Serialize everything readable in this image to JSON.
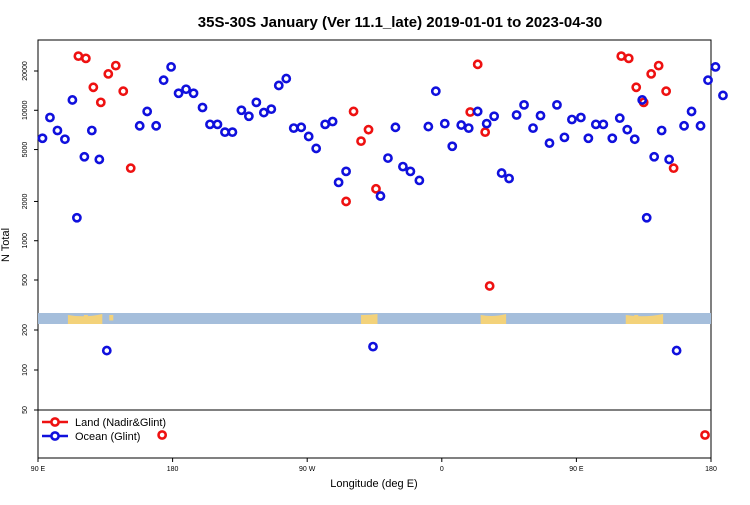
{
  "chart_data": {
    "type": "scatter",
    "title": "35S-30S January (Ver 11.1_late)   2019-01-01 to 2023-04-30",
    "xlabel": "Longitude (deg E)",
    "ylabel": "N Total",
    "x_ticks": [
      {
        "value": 90,
        "label": "90 E"
      },
      {
        "value": 180,
        "label": "180"
      },
      {
        "value": 270,
        "label": "90 W"
      },
      {
        "value": 360,
        "label": "0"
      },
      {
        "value": 450,
        "label": "90 E"
      },
      {
        "value": 540,
        "label": "180"
      }
    ],
    "xlim": [
      90,
      540
    ],
    "y_scale": "log",
    "upper_y_ticks": [
      {
        "value": 500,
        "label": "500"
      },
      {
        "value": 1000,
        "label": "1000"
      },
      {
        "value": 2000,
        "label": "2000"
      },
      {
        "value": 5000,
        "label": "5000"
      },
      {
        "value": 10000,
        "label": "10000"
      },
      {
        "value": 20000,
        "label": "20000"
      }
    ],
    "lower_y_ticks": [
      {
        "value": 50,
        "label": "50"
      },
      {
        "value": 100,
        "label": "100"
      },
      {
        "value": 200,
        "label": "200"
      }
    ],
    "land_strip_color": "#a5bedb",
    "land_color": "#f3d27a",
    "series": [
      {
        "name": "Land (Nadir&Glint)",
        "color": "#ee1111",
        "points": [
          [
            117,
            26000
          ],
          [
            122,
            25000
          ],
          [
            127,
            15000
          ],
          [
            132,
            11500
          ],
          [
            137,
            19000
          ],
          [
            142,
            22000
          ],
          [
            147,
            14000
          ],
          [
            152,
            3600
          ],
          [
            296,
            2000
          ],
          [
            301,
            9800
          ],
          [
            306,
            5800
          ],
          [
            311,
            7100
          ],
          [
            316,
            2500
          ],
          [
            379,
            9700
          ],
          [
            384,
            22500
          ],
          [
            389,
            6800
          ],
          [
            392,
            450
          ],
          [
            480,
            26000
          ],
          [
            485,
            25000
          ],
          [
            490,
            15000
          ],
          [
            495,
            11500
          ],
          [
            500,
            19000
          ],
          [
            505,
            22000
          ],
          [
            510,
            14000
          ],
          [
            515,
            3600
          ]
        ],
        "outliers": [
          {
            "x": 173,
            "y": 30
          },
          {
            "x": 536,
            "y": 30
          }
        ]
      },
      {
        "name": "Ocean (Glint)",
        "color": "#1010dd",
        "points": [
          [
            93,
            6100
          ],
          [
            98,
            8800
          ],
          [
            103,
            7000
          ],
          [
            108,
            6000
          ],
          [
            113,
            12000
          ],
          [
            116,
            1500
          ],
          [
            121,
            4400
          ],
          [
            126,
            7000
          ],
          [
            131,
            4200
          ],
          [
            136,
            140
          ],
          [
            158,
            7600
          ],
          [
            163,
            9800
          ],
          [
            169,
            7600
          ],
          [
            174,
            17000
          ],
          [
            179,
            21500
          ],
          [
            184,
            13500
          ],
          [
            189,
            14500
          ],
          [
            194,
            13500
          ],
          [
            200,
            10500
          ],
          [
            205,
            7800
          ],
          [
            210,
            7800
          ],
          [
            215,
            6800
          ],
          [
            220,
            6800
          ],
          [
            226,
            10000
          ],
          [
            231,
            9000
          ],
          [
            236,
            11500
          ],
          [
            241,
            9600
          ],
          [
            246,
            10200
          ],
          [
            251,
            15500
          ],
          [
            256,
            17500
          ],
          [
            261,
            7300
          ],
          [
            266,
            7400
          ],
          [
            271,
            6300
          ],
          [
            276,
            5100
          ],
          [
            282,
            7800
          ],
          [
            287,
            8200
          ],
          [
            291,
            2800
          ],
          [
            296,
            3400
          ],
          [
            314,
            150
          ],
          [
            319,
            2200
          ],
          [
            324,
            4300
          ],
          [
            329,
            7400
          ],
          [
            334,
            3700
          ],
          [
            339,
            3400
          ],
          [
            345,
            2900
          ],
          [
            351,
            7500
          ],
          [
            356,
            14000
          ],
          [
            362,
            7900
          ],
          [
            367,
            5300
          ],
          [
            373,
            7700
          ],
          [
            378,
            7300
          ],
          [
            384,
            9800
          ],
          [
            390,
            7900
          ],
          [
            395,
            9000
          ],
          [
            400,
            3300
          ],
          [
            405,
            3000
          ],
          [
            410,
            9200
          ],
          [
            415,
            11000
          ],
          [
            421,
            7300
          ],
          [
            426,
            9100
          ],
          [
            432,
            5600
          ],
          [
            437,
            11000
          ],
          [
            442,
            6200
          ],
          [
            447,
            8500
          ],
          [
            453,
            8800
          ],
          [
            458,
            6100
          ],
          [
            463,
            7800
          ],
          [
            468,
            7800
          ],
          [
            474,
            6100
          ],
          [
            479,
            8700
          ],
          [
            484,
            7100
          ],
          [
            489,
            6000
          ],
          [
            494,
            12000
          ],
          [
            497,
            1500
          ],
          [
            502,
            4400
          ],
          [
            507,
            7000
          ],
          [
            512,
            4200
          ],
          [
            517,
            140
          ],
          [
            522,
            7600
          ],
          [
            527,
            9800
          ],
          [
            533,
            7600
          ],
          [
            538,
            17000
          ],
          [
            543,
            21500
          ],
          [
            548,
            13000
          ]
        ]
      }
    ]
  }
}
